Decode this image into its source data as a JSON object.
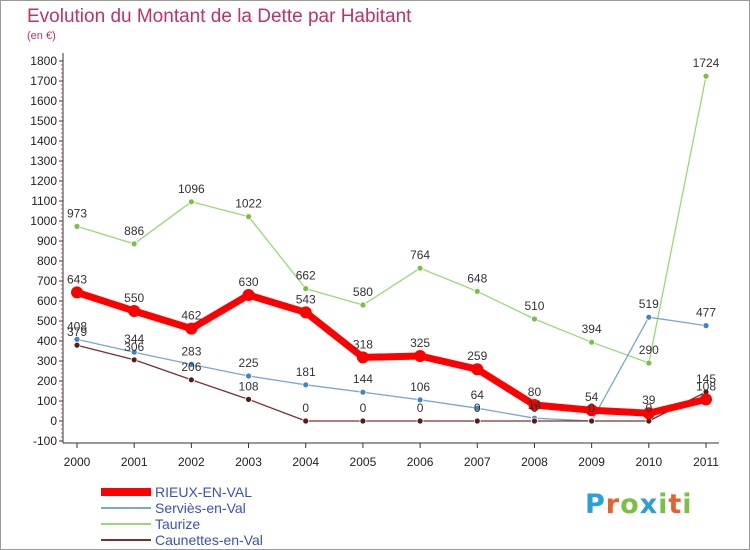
{
  "header": {
    "title": "Evolution du Montant de la Dette par Habitant",
    "subtitle": "(en €)"
  },
  "brand": {
    "logo_text": "Proxiti",
    "letter_colors": [
      "#2aa0d8",
      "#e8612c",
      "#7ac143",
      "#2aa0d8",
      "#7ac143",
      "#e8612c",
      "#7ac143"
    ]
  },
  "chart_data": {
    "type": "line",
    "title": "Evolution du Montant de la Dette par Habitant",
    "subtitle": "(en €)",
    "xlabel": "",
    "ylabel": "",
    "x": [
      "2000",
      "2001",
      "2002",
      "2003",
      "2004",
      "2005",
      "2006",
      "2007",
      "2008",
      "2009",
      "2010",
      "2011"
    ],
    "ylim": [
      -100,
      1800
    ],
    "yticks": [
      -100,
      0,
      100,
      200,
      300,
      400,
      500,
      600,
      700,
      800,
      900,
      1000,
      1100,
      1200,
      1300,
      1400,
      1500,
      1600,
      1700,
      1800
    ],
    "grid": false,
    "legend_position": "bottom-left",
    "series": [
      {
        "name": "Taurize",
        "color": "#99d977",
        "point_color": "#7ac143",
        "values": [
          973,
          886,
          1096,
          1022,
          662,
          580,
          764,
          648,
          510,
          394,
          290,
          1724
        ]
      },
      {
        "name": "Serviès-en-Val",
        "color": "#7aa8d0",
        "point_color": "#3d85c6",
        "values": [
          408,
          344,
          283,
          225,
          181,
          144,
          106,
          64,
          14,
          0,
          519,
          477
        ]
      },
      {
        "name": "Caunettes-en-Val",
        "color": "#7a3030",
        "point_color": "#5a1818",
        "values": [
          379,
          306,
          206,
          108,
          0,
          0,
          0,
          0,
          0,
          0,
          0,
          145
        ]
      },
      {
        "name": "RIEUX-EN-VAL",
        "color": "#ff0000",
        "point_color": "#ff0000",
        "values": [
          643,
          550,
          462,
          630,
          543,
          318,
          325,
          259,
          80,
          54,
          39,
          108
        ]
      }
    ],
    "data_labels": [
      {
        "series": 0,
        "text": [
          "973",
          "886",
          "1096",
          "1022",
          "662",
          "580",
          "764",
          "648",
          "510",
          "394",
          "290",
          "1724"
        ]
      },
      {
        "series": 1,
        "text": [
          "408",
          "344",
          "283",
          "225",
          "181",
          "144",
          "106",
          "64",
          "14",
          "0",
          "519",
          "477"
        ]
      },
      {
        "series": 2,
        "text": [
          "379",
          "306",
          "206",
          "108",
          "0",
          "0",
          "0",
          "0",
          "0",
          "0",
          "0",
          "145"
        ]
      },
      {
        "series": 3,
        "text": [
          "643",
          "550",
          "462",
          "630",
          "543",
          "318",
          "325",
          "259",
          "80",
          "54",
          "39",
          "108"
        ]
      }
    ],
    "legend_order": [
      3,
      1,
      0,
      2
    ]
  }
}
